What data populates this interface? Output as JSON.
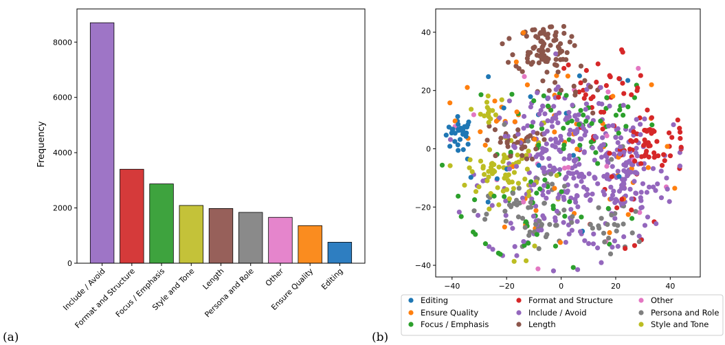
{
  "panel_labels": {
    "a": "(a)",
    "b": "(b)"
  },
  "chart_data": [
    {
      "type": "bar",
      "panel": "(a)",
      "categories": [
        "Include / Avoid",
        "Format and Structure",
        "Focus / Emphasis",
        "Style and Tone",
        "Length",
        "Persona and Role",
        "Other",
        "Ensure Quality",
        "Editing"
      ],
      "values": [
        8700,
        3400,
        2870,
        2090,
        1980,
        1840,
        1660,
        1360,
        760
      ],
      "colors": [
        "#9e75c6",
        "#d53a3a",
        "#3ea33e",
        "#c4c239",
        "#97605a",
        "#8a8a8a",
        "#e585cc",
        "#fa8c1f",
        "#2e7ec1"
      ],
      "xlabel": "",
      "ylabel": "Frequency",
      "ylim": [
        0,
        9200
      ],
      "yticks": [
        0,
        2000,
        4000,
        6000,
        8000
      ],
      "grid": false
    },
    {
      "type": "scatter",
      "panel": "(b)",
      "xlim": [
        -46,
        51
      ],
      "ylim": [
        -44,
        48
      ],
      "xticks": [
        -40,
        -20,
        0,
        20,
        40
      ],
      "yticks": [
        -40,
        -20,
        0,
        20,
        40
      ],
      "grid": false,
      "legend_position": "bottom-outside",
      "series": [
        {
          "name": "Editing",
          "color": "#1f77b4",
          "clusters": [
            {
              "cx": -37,
              "cy": 6,
              "sx": 2.5,
              "sy": 2.5,
              "n": 28
            },
            {
              "cx": -5,
              "cy": 2,
              "sx": 18,
              "sy": 15,
              "n": 22
            }
          ]
        },
        {
          "name": "Ensure Quality",
          "color": "#ff7f0e",
          "clusters": [
            {
              "cx": 0,
              "cy": -5,
              "sx": 22,
              "sy": 18,
              "n": 45
            },
            {
              "cx": -25,
              "cy": 8,
              "sx": 8,
              "sy": 6,
              "n": 10
            }
          ]
        },
        {
          "name": "Focus / Emphasis",
          "color": "#2ca02c",
          "clusters": [
            {
              "cx": 5,
              "cy": 10,
              "sx": 15,
              "sy": 8,
              "n": 50
            },
            {
              "cx": -10,
              "cy": -20,
              "sx": 16,
              "sy": 10,
              "n": 40
            }
          ]
        },
        {
          "name": "Format and Structure",
          "color": "#d62728",
          "clusters": [
            {
              "cx": 32,
              "cy": 2,
              "sx": 7,
              "sy": 5,
              "n": 60
            },
            {
              "cx": 15,
              "cy": 20,
              "sx": 8,
              "sy": 6,
              "n": 35
            },
            {
              "cx": 25,
              "cy": -25,
              "sx": 10,
              "sy": 8,
              "n": 12
            }
          ]
        },
        {
          "name": "Include / Avoid",
          "color": "#9467bd",
          "clusters": [
            {
              "cx": 5,
              "cy": -10,
              "sx": 16,
              "sy": 13,
              "n": 260
            },
            {
              "cx": 25,
              "cy": -10,
              "sx": 8,
              "sy": 9,
              "n": 70
            },
            {
              "cx": 0,
              "cy": 10,
              "sx": 12,
              "sy": 6,
              "n": 50
            }
          ]
        },
        {
          "name": "Length",
          "color": "#8c564b",
          "clusters": [
            {
              "cx": -7,
              "cy": 35,
              "sx": 5,
              "sy": 4.5,
              "n": 85
            },
            {
              "cx": -18,
              "cy": 2,
              "sx": 5,
              "sy": 3,
              "n": 35
            },
            {
              "cx": 3,
              "cy": 20,
              "sx": 6,
              "sy": 6,
              "n": 15
            }
          ]
        },
        {
          "name": "Other",
          "color": "#e377c2",
          "clusters": [
            {
              "cx": 0,
              "cy": 0,
              "sx": 20,
              "sy": 20,
              "n": 20
            }
          ]
        },
        {
          "name": "Persona and Role",
          "color": "#7f7f7f",
          "clusters": [
            {
              "cx": -10,
              "cy": -25,
              "sx": 8,
              "sy": 6,
              "n": 45
            },
            {
              "cx": 18,
              "cy": -28,
              "sx": 5,
              "sy": 5,
              "n": 20
            },
            {
              "cx": 0,
              "cy": -8,
              "sx": 20,
              "sy": 15,
              "n": 15
            }
          ]
        },
        {
          "name": "Style and Tone",
          "color": "#bcbd22",
          "clusters": [
            {
              "cx": -22,
              "cy": -8,
              "sx": 6,
              "sy": 3.5,
              "n": 55
            },
            {
              "cx": -27,
              "cy": 12,
              "sx": 2,
              "sy": 4,
              "n": 15
            },
            {
              "cx": -15,
              "cy": -5,
              "sx": 15,
              "sy": 14,
              "n": 18
            }
          ]
        }
      ]
    }
  ]
}
